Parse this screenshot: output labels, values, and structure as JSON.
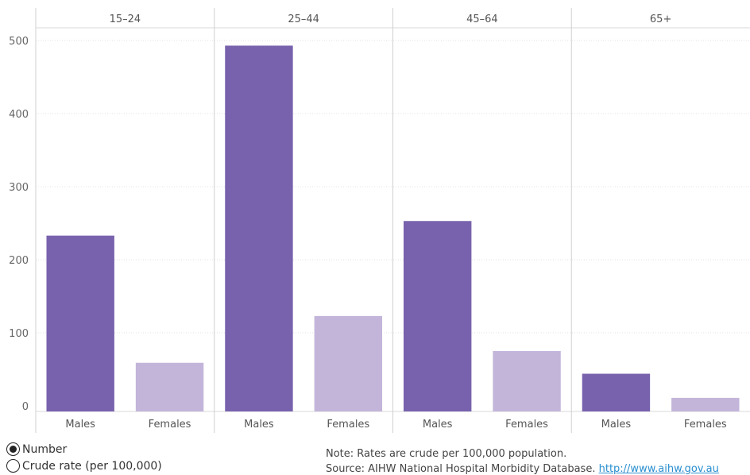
{
  "chart_data": {
    "type": "bar",
    "groups": [
      "15–24",
      "25–44",
      "45–64",
      "65+"
    ],
    "categories": [
      "Males",
      "Females"
    ],
    "values": [
      [
        233,
        59
      ],
      [
        493,
        123
      ],
      [
        253,
        75
      ],
      [
        44,
        11
      ]
    ],
    "ylim": [
      0,
      520
    ],
    "yticks": [
      0,
      100,
      200,
      300,
      400,
      500
    ],
    "colors": {
      "Males": "#7862ad",
      "Females": "#c3b5da"
    },
    "grid": true
  },
  "controls": {
    "options": [
      {
        "label": "Number",
        "selected": true
      },
      {
        "label": "Crude rate (per 100,000)",
        "selected": false
      }
    ]
  },
  "footer": {
    "note": "Note: Rates are crude per 100,000 population.",
    "source": "Source: AIHW National Hospital Morbidity Database.",
    "link": "http://www.aihw.gov.au"
  }
}
